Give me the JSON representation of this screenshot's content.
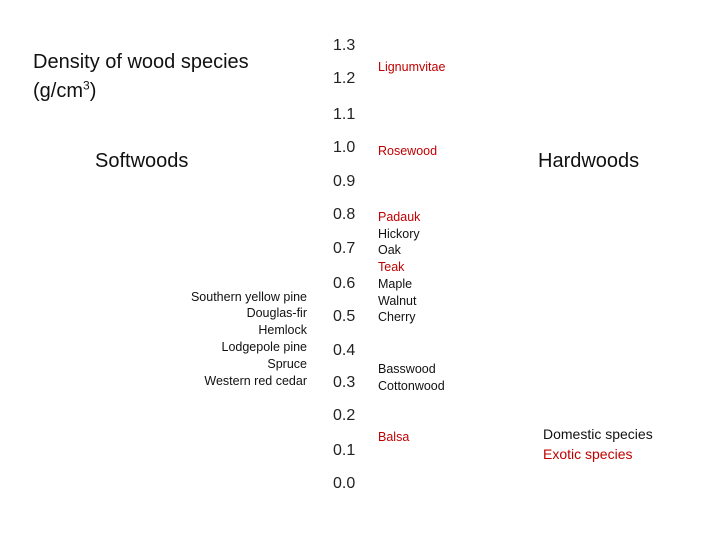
{
  "title": {
    "line1": "Density of wood species",
    "line2_prefix": "(g/cm",
    "line2_sup": "3",
    "line2_suffix": ")"
  },
  "softwoods_label": "Softwoods",
  "hardwoods_label": "Hardwoods",
  "scale": [
    "1.3",
    "1.2",
    "1.1",
    "1.0",
    "0.9",
    "0.8",
    "0.7",
    "0.6",
    "0.5",
    "0.4",
    "0.3",
    "0.2",
    "0.1",
    "0.0"
  ],
  "softwoods": [
    "Southern yellow pine",
    "Douglas-fir",
    "Hemlock",
    "Lodgepole pine",
    "Spruce",
    "Western red cedar"
  ],
  "hardwoods": {
    "lignumvitae": "Lignumvitae",
    "rosewood": "Rosewood",
    "group_mid": [
      "Padauk",
      "Hickory",
      "Oak",
      "Teak",
      "Maple",
      "Walnut",
      "Cherry"
    ],
    "group_low": [
      "Basswood",
      "Cottonwood"
    ],
    "balsa": "Balsa"
  },
  "legend": {
    "domestic": "Domestic species",
    "exotic": "Exotic species"
  },
  "colors": {
    "exotic": "#c00000",
    "domestic": "#111111"
  }
}
